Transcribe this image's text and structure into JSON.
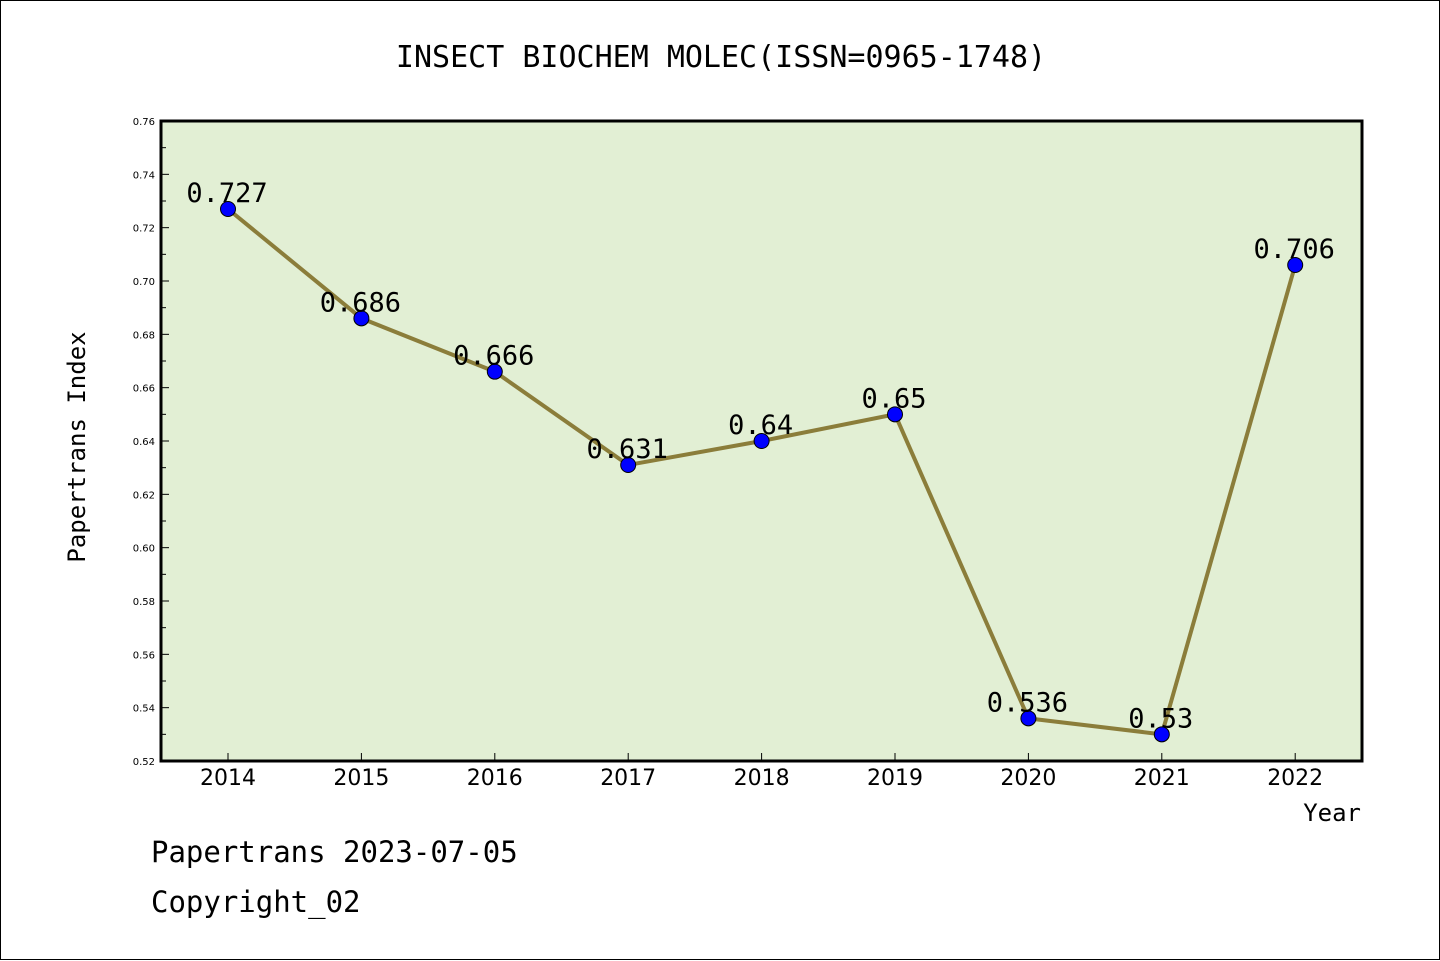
{
  "chart_data": {
    "type": "line",
    "title": "INSECT BIOCHEM MOLEC(ISSN=0965-1748)",
    "xlabel": "Year",
    "ylabel": "Papertrans Index",
    "categories": [
      "2014",
      "2015",
      "2016",
      "2017",
      "2018",
      "2019",
      "2020",
      "2021",
      "2022"
    ],
    "values": [
      0.727,
      0.686,
      0.666,
      0.631,
      0.64,
      0.65,
      0.536,
      0.53,
      0.706
    ],
    "data_labels": [
      "0.727",
      "0.686",
      "0.666",
      "0.631",
      "0.64",
      "0.65",
      "0.536",
      "0.53",
      "0.706"
    ],
    "ylim": [
      0.52,
      0.76
    ],
    "yticks": [
      "0.52",
      "0.54",
      "0.56",
      "0.58",
      "0.60",
      "0.62",
      "0.64",
      "0.66",
      "0.68",
      "0.70",
      "0.72",
      "0.74",
      "0.76"
    ],
    "colors": {
      "plot_background": "#e2efd4",
      "line": "#8b7d3a",
      "marker": "#0000ff"
    }
  },
  "footer": {
    "source": "Papertrans 2023-07-05",
    "copyright": "Copyright_02"
  }
}
